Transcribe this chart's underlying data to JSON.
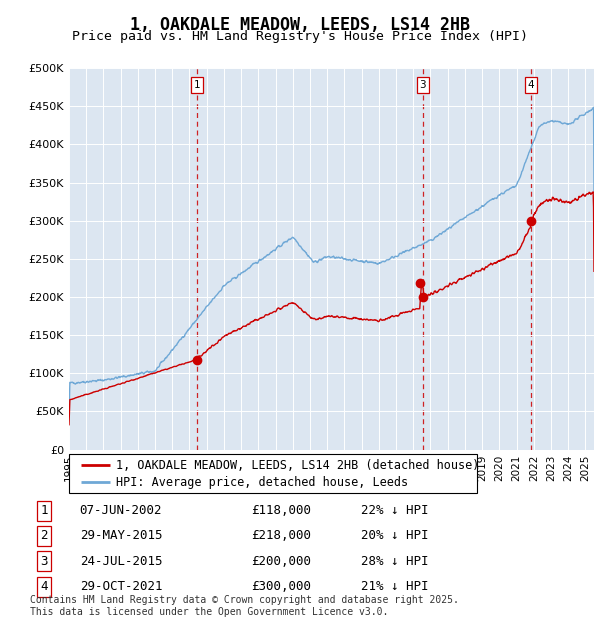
{
  "title": "1, OAKDALE MEADOW, LEEDS, LS14 2HB",
  "subtitle": "Price paid vs. HM Land Registry's House Price Index (HPI)",
  "ylabel_ticks": [
    "£0",
    "£50K",
    "£100K",
    "£150K",
    "£200K",
    "£250K",
    "£300K",
    "£350K",
    "£400K",
    "£450K",
    "£500K"
  ],
  "ylim": [
    0,
    500000
  ],
  "xlim_start": 1995.0,
  "xlim_end": 2025.5,
  "bg_color": "#dce6f1",
  "grid_color": "#ffffff",
  "hpi_color": "#6fa8d6",
  "price_color": "#cc0000",
  "vline_color": "#cc0000",
  "purchases": [
    {
      "num": 1,
      "date": "07-JUN-2002",
      "price": 118000,
      "year": 2002.44,
      "pct": "22%",
      "dir": "↓"
    },
    {
      "num": 2,
      "date": "29-MAY-2015",
      "price": 218000,
      "year": 2015.41,
      "pct": "20%",
      "dir": "↓"
    },
    {
      "num": 3,
      "date": "24-JUL-2015",
      "price": 200000,
      "year": 2015.56,
      "pct": "28%",
      "dir": "↓"
    },
    {
      "num": 4,
      "date": "29-OCT-2021",
      "price": 300000,
      "year": 2021.83,
      "pct": "21%",
      "dir": "↓"
    }
  ],
  "legend_label_price": "1, OAKDALE MEADOW, LEEDS, LS14 2HB (detached house)",
  "legend_label_hpi": "HPI: Average price, detached house, Leeds",
  "footnote": "Contains HM Land Registry data © Crown copyright and database right 2025.\nThis data is licensed under the Open Government Licence v3.0.",
  "title_fontsize": 12,
  "subtitle_fontsize": 9.5,
  "tick_fontsize": 8,
  "legend_fontsize": 8.5,
  "table_fontsize": 9,
  "footnote_fontsize": 7
}
